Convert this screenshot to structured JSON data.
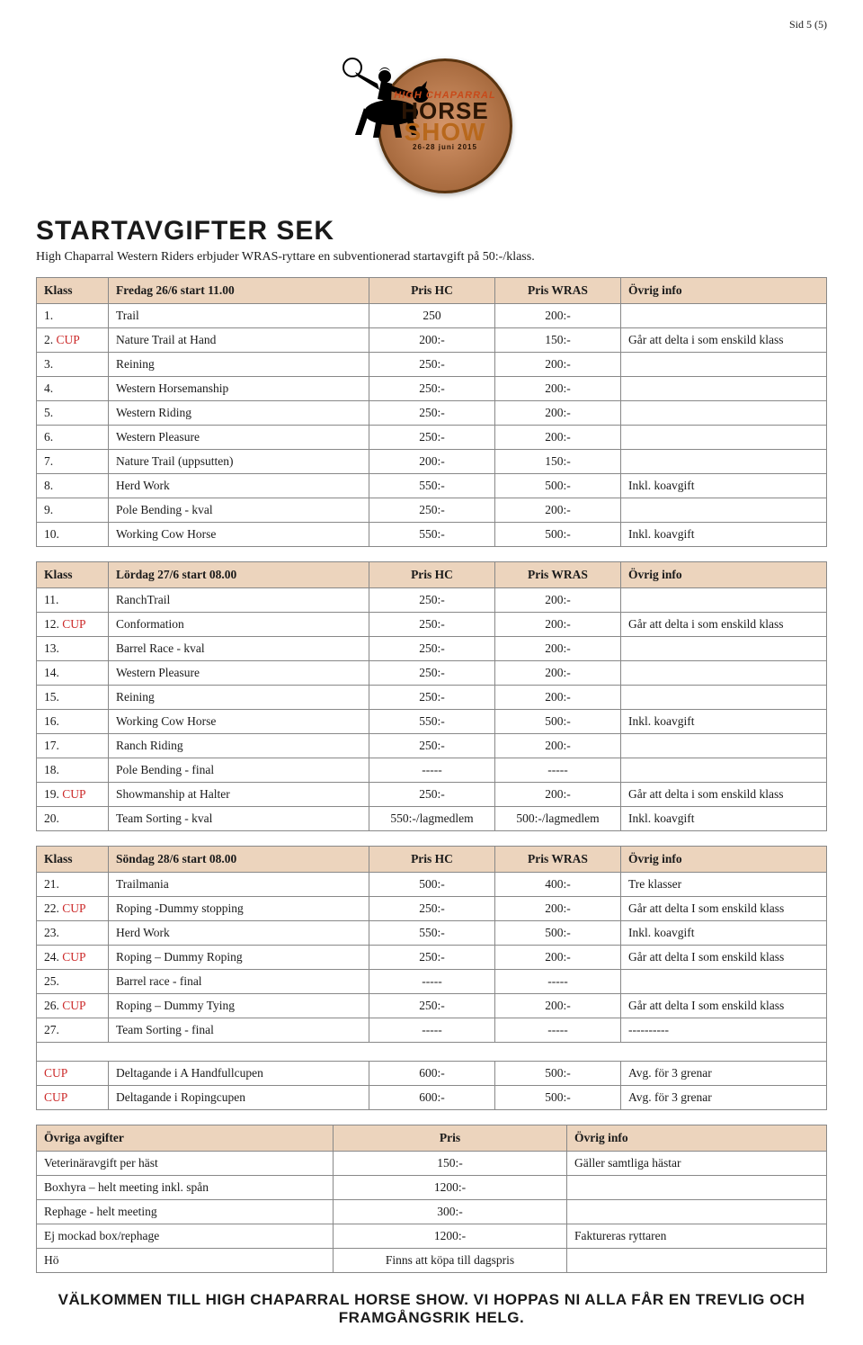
{
  "page_number": "Sid 5 (5)",
  "logo": {
    "line1": "HIGH CHAPARRAL",
    "line2": "HORSE",
    "line3": "SHOW",
    "line4": "26-28 juni 2015"
  },
  "title": "STARTAVGIFTER SEK",
  "subtitle": "High Chaparral Western Riders erbjuder WRAS-ryttare en subventionerad startavgift på 50:-/klass.",
  "colors": {
    "header_bg": "#ecd4bd",
    "border": "#888888",
    "cup": "#cc2a2a",
    "text": "#1a1a1a"
  },
  "tables": [
    {
      "header": [
        "Klass",
        "Fredag 26/6  start 11.00",
        "Pris HC",
        "Pris WRAS",
        "Övrig info"
      ],
      "rows": [
        {
          "n": "1.",
          "cup": false,
          "name": "Trail",
          "hc": "250",
          "wr": "200:-",
          "info": ""
        },
        {
          "n": "2.",
          "cup": true,
          "name": "Nature Trail at Hand",
          "hc": "200:-",
          "wr": "150:-",
          "info": "Går att delta i som enskild klass"
        },
        {
          "n": "3.",
          "cup": false,
          "name": "Reining",
          "hc": "250:-",
          "wr": "200:-",
          "info": ""
        },
        {
          "n": "4.",
          "cup": false,
          "name": "Western Horsemanship",
          "hc": "250:-",
          "wr": "200:-",
          "info": ""
        },
        {
          "n": "5.",
          "cup": false,
          "name": "Western Riding",
          "hc": "250:-",
          "wr": "200:-",
          "info": ""
        },
        {
          "n": "6.",
          "cup": false,
          "name": "Western Pleasure",
          "hc": "250:-",
          "wr": "200:-",
          "info": ""
        },
        {
          "n": "7.",
          "cup": false,
          "name": "Nature Trail (uppsutten)",
          "hc": "200:-",
          "wr": "150:-",
          "info": ""
        },
        {
          "n": "8.",
          "cup": false,
          "name": "Herd Work",
          "hc": "550:-",
          "wr": "500:-",
          "info": "Inkl. koavgift"
        },
        {
          "n": "9.",
          "cup": false,
          "name": "Pole Bending - kval",
          "hc": "250:-",
          "wr": "200:-",
          "info": ""
        },
        {
          "n": "10.",
          "cup": false,
          "name": "Working Cow Horse",
          "hc": "550:-",
          "wr": "500:-",
          "info": "Inkl. koavgift"
        }
      ]
    },
    {
      "header": [
        "Klass",
        "Lördag 27/6 start 08.00",
        "Pris HC",
        "Pris WRAS",
        "Övrig info"
      ],
      "rows": [
        {
          "n": "11.",
          "cup": false,
          "name": "RanchTrail",
          "hc": "250:-",
          "wr": "200:-",
          "info": ""
        },
        {
          "n": "12.",
          "cup": true,
          "name": "Conformation",
          "hc": "250:-",
          "wr": "200:-",
          "info": "Går att delta i som enskild klass"
        },
        {
          "n": "13.",
          "cup": false,
          "name": "Barrel Race - kval",
          "hc": "250:-",
          "wr": "200:-",
          "info": ""
        },
        {
          "n": "14.",
          "cup": false,
          "name": "Western Pleasure",
          "hc": "250:-",
          "wr": "200:-",
          "info": ""
        },
        {
          "n": "15.",
          "cup": false,
          "name": "Reining",
          "hc": "250:-",
          "wr": "200:-",
          "info": ""
        },
        {
          "n": "16.",
          "cup": false,
          "name": "Working Cow Horse",
          "hc": "550:-",
          "wr": "500:-",
          "info": "Inkl. koavgift"
        },
        {
          "n": "17.",
          "cup": false,
          "name": "Ranch Riding",
          "hc": "250:-",
          "wr": "200:-",
          "info": ""
        },
        {
          "n": "18.",
          "cup": false,
          "name": "Pole Bending - final",
          "hc": "-----",
          "wr": "-----",
          "info": ""
        },
        {
          "n": "19.",
          "cup": true,
          "name": "Showmanship at Halter",
          "hc": "250:-",
          "wr": "200:-",
          "info": "Går att delta i som enskild klass"
        },
        {
          "n": "20.",
          "cup": false,
          "name": "Team Sorting - kval",
          "hc": "550:-/lagmedlem",
          "wr": "500:-/lagmedlem",
          "info": "Inkl. koavgift"
        }
      ]
    },
    {
      "header": [
        "Klass",
        "Söndag 28/6 start 08.00",
        "Pris HC",
        "Pris WRAS",
        "Övrig info"
      ],
      "rows": [
        {
          "n": "21.",
          "cup": false,
          "name": "Trailmania",
          "hc": "500:-",
          "wr": "400:-",
          "info": "Tre klasser"
        },
        {
          "n": "22.",
          "cup": true,
          "name": "Roping -Dummy stopping",
          "hc": "250:-",
          "wr": "200:-",
          "info": "Går att delta I som enskild klass"
        },
        {
          "n": "23.",
          "cup": false,
          "name": "Herd Work",
          "hc": "550:-",
          "wr": "500:-",
          "info": "Inkl. koavgift"
        },
        {
          "n": "24.",
          "cup": true,
          "name": "Roping – Dummy Roping",
          "hc": "250:-",
          "wr": "200:-",
          "info": "Går att delta I som enskild klass"
        },
        {
          "n": "25.",
          "cup": false,
          "name": "Barrel race - final",
          "hc": "-----",
          "wr": "-----",
          "info": ""
        },
        {
          "n": "26.",
          "cup": true,
          "name": "Roping – Dummy Tying",
          "hc": "250:-",
          "wr": "200:-",
          "info": "Går att delta I som enskild klass"
        },
        {
          "n": "27.",
          "cup": false,
          "name": "Team Sorting - final",
          "hc": "-----",
          "wr": "-----",
          "info": "----------"
        }
      ],
      "extra_rows": [
        {
          "n": "CUP",
          "name": "Deltagande i A Handfullcupen",
          "hc": "600:-",
          "wr": "500:-",
          "info": "Avg. för 3 grenar"
        },
        {
          "n": "CUP",
          "name": "Deltagande i Ropingcupen",
          "hc": "600:-",
          "wr": "500:-",
          "info": "Avg. för 3 grenar"
        }
      ]
    }
  ],
  "fees": {
    "header": [
      "Övriga avgifter",
      "Pris",
      "Övrig info"
    ],
    "rows": [
      {
        "name": "Veterinäravgift per häst",
        "price": "150:-",
        "info": "Gäller samtliga hästar"
      },
      {
        "name": "Boxhyra – helt meeting inkl. spån",
        "price": "1200:-",
        "info": ""
      },
      {
        "name": "Rephage - helt meeting",
        "price": "300:-",
        "info": ""
      },
      {
        "name": "Ej mockad box/rephage",
        "price": "1200:-",
        "info": "Faktureras ryttaren"
      },
      {
        "name": "Hö",
        "price": "Finns att köpa till dagspris",
        "info": ""
      }
    ]
  },
  "footer": "VÄLKOMMEN TILL HIGH CHAPARRAL HORSE SHOW. VI HOPPAS NI ALLA FÅR EN TREVLIG OCH FRAMGÅNGSRIK HELG.",
  "cup_label": "CUP"
}
